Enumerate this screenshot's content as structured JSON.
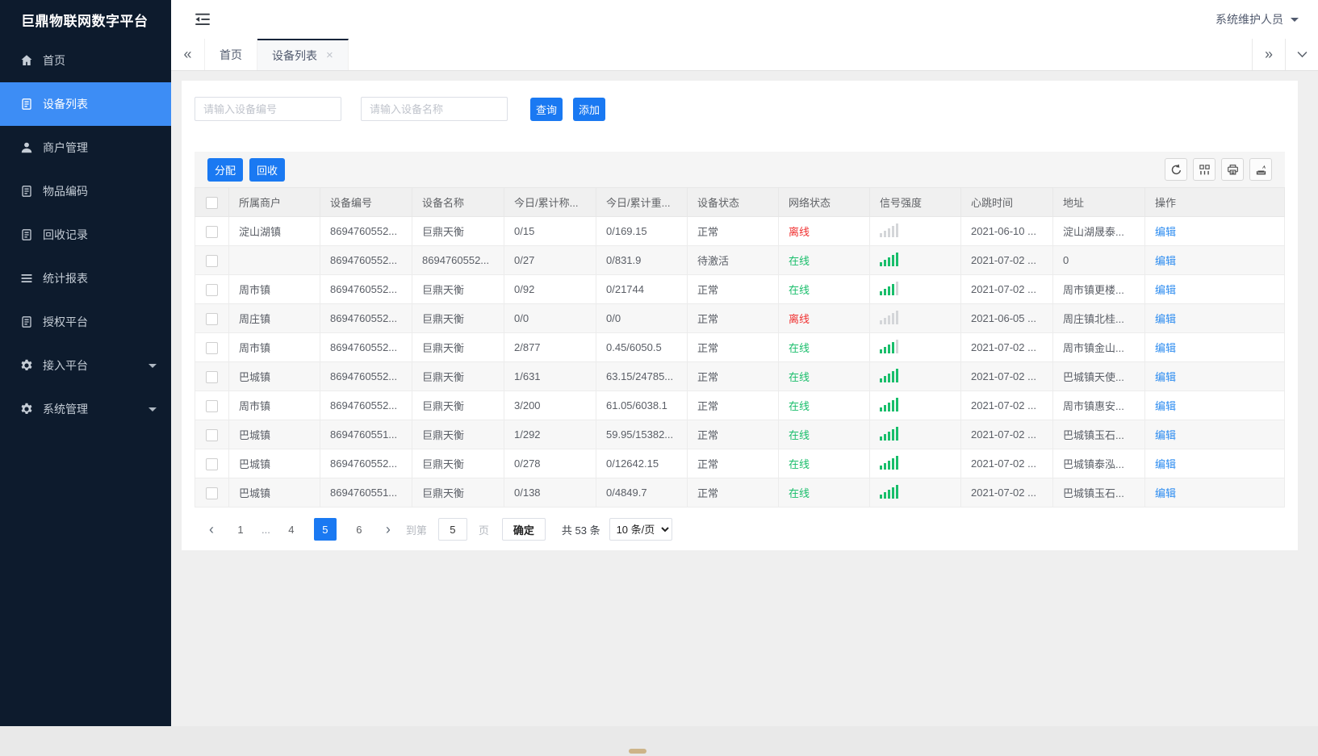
{
  "app": {
    "title": "巨鼎物联网数字平台",
    "user_name": "系统维护人员"
  },
  "sidebar": {
    "items": [
      {
        "key": "home",
        "label": "首页",
        "icon": "home-icon",
        "active": false,
        "expandable": false
      },
      {
        "key": "device-list",
        "label": "设备列表",
        "icon": "doc-icon",
        "active": true,
        "expandable": false
      },
      {
        "key": "merchant-management",
        "label": "商户管理",
        "icon": "user-icon",
        "active": false,
        "expandable": false
      },
      {
        "key": "item-code",
        "label": "物品编码",
        "icon": "doc-icon",
        "active": false,
        "expandable": false
      },
      {
        "key": "recycle-records",
        "label": "回收记录",
        "icon": "doc-icon",
        "active": false,
        "expandable": false
      },
      {
        "key": "statistics-report",
        "label": "统计报表",
        "icon": "lines-icon",
        "active": false,
        "expandable": false
      },
      {
        "key": "authorize-platform",
        "label": "授权平台",
        "icon": "doc-icon",
        "active": false,
        "expandable": false
      },
      {
        "key": "access-platform",
        "label": "接入平台",
        "icon": "gear-icon",
        "active": false,
        "expandable": true
      },
      {
        "key": "system-management",
        "label": "系统管理",
        "icon": "gear-icon",
        "active": false,
        "expandable": true
      }
    ]
  },
  "tabbar": {
    "tabs": [
      {
        "key": "home",
        "label": "首页",
        "active": false,
        "closable": false
      },
      {
        "key": "device-list",
        "label": "设备列表",
        "active": true,
        "closable": true
      }
    ],
    "close_glyph": "×",
    "scroll_left_glyph": "«",
    "scroll_right_glyph": "»"
  },
  "search": {
    "device_no_placeholder": "请输入设备编号",
    "device_name_placeholder": "请输入设备名称",
    "query_label": "查询",
    "add_label": "添加"
  },
  "toolbar": {
    "assign_label": "分配",
    "recycle_label": "回收",
    "icons": [
      "refresh-icon",
      "columns-icon",
      "print-icon",
      "export-icon"
    ]
  },
  "table": {
    "columns": [
      "所属商户",
      "设备编号",
      "设备名称",
      "今日/累计称...",
      "今日/累计重...",
      "设备状态",
      "网络状态",
      "信号强度",
      "心跳时间",
      "地址",
      "操作"
    ],
    "edit_label": "编辑",
    "rows": [
      {
        "merchant": "淀山湖镇",
        "device_no": "8694760552...",
        "device_name": "巨鼎天衡",
        "today_total_count": "0/15",
        "today_total_weight": "0/169.15",
        "device_status": "正常",
        "network_status": "离线",
        "online": false,
        "signal_level": 0,
        "heartbeat": "2021-06-10 ...",
        "address": "淀山湖晟泰..."
      },
      {
        "merchant": "",
        "device_no": "8694760552...",
        "device_name": "8694760552...",
        "today_total_count": "0/27",
        "today_total_weight": "0/831.9",
        "device_status": "待激活",
        "network_status": "在线",
        "online": true,
        "signal_level": 5,
        "heartbeat": "2021-07-02 ...",
        "address": "0"
      },
      {
        "merchant": "周市镇",
        "device_no": "8694760552...",
        "device_name": "巨鼎天衡",
        "today_total_count": "0/92",
        "today_total_weight": "0/21744",
        "device_status": "正常",
        "network_status": "在线",
        "online": true,
        "signal_level": 4,
        "heartbeat": "2021-07-02 ...",
        "address": "周市镇更楼..."
      },
      {
        "merchant": "周庄镇",
        "device_no": "8694760552...",
        "device_name": "巨鼎天衡",
        "today_total_count": "0/0",
        "today_total_weight": "0/0",
        "device_status": "正常",
        "network_status": "离线",
        "online": false,
        "signal_level": 0,
        "heartbeat": "2021-06-05 ...",
        "address": "周庄镇北桂..."
      },
      {
        "merchant": "周市镇",
        "device_no": "8694760552...",
        "device_name": "巨鼎天衡",
        "today_total_count": "2/877",
        "today_total_weight": "0.45/6050.5",
        "device_status": "正常",
        "network_status": "在线",
        "online": true,
        "signal_level": 4,
        "heartbeat": "2021-07-02 ...",
        "address": "周市镇金山..."
      },
      {
        "merchant": "巴城镇",
        "device_no": "8694760552...",
        "device_name": "巨鼎天衡",
        "today_total_count": "1/631",
        "today_total_weight": "63.15/24785...",
        "device_status": "正常",
        "network_status": "在线",
        "online": true,
        "signal_level": 5,
        "heartbeat": "2021-07-02 ...",
        "address": "巴城镇天使..."
      },
      {
        "merchant": "周市镇",
        "device_no": "8694760552...",
        "device_name": "巨鼎天衡",
        "today_total_count": "3/200",
        "today_total_weight": "61.05/6038.1",
        "device_status": "正常",
        "network_status": "在线",
        "online": true,
        "signal_level": 5,
        "heartbeat": "2021-07-02 ...",
        "address": "周市镇惠安..."
      },
      {
        "merchant": "巴城镇",
        "device_no": "8694760551...",
        "device_name": "巨鼎天衡",
        "today_total_count": "1/292",
        "today_total_weight": "59.95/15382...",
        "device_status": "正常",
        "network_status": "在线",
        "online": true,
        "signal_level": 5,
        "heartbeat": "2021-07-02 ...",
        "address": "巴城镇玉石..."
      },
      {
        "merchant": "巴城镇",
        "device_no": "8694760552...",
        "device_name": "巨鼎天衡",
        "today_total_count": "0/278",
        "today_total_weight": "0/12642.15",
        "device_status": "正常",
        "network_status": "在线",
        "online": true,
        "signal_level": 5,
        "heartbeat": "2021-07-02 ...",
        "address": "巴城镇泰泓..."
      },
      {
        "merchant": "巴城镇",
        "device_no": "8694760551...",
        "device_name": "巨鼎天衡",
        "today_total_count": "0/138",
        "today_total_weight": "0/4849.7",
        "device_status": "正常",
        "network_status": "在线",
        "online": true,
        "signal_level": 5,
        "heartbeat": "2021-07-02 ...",
        "address": "巴城镇玉石..."
      }
    ]
  },
  "pagination": {
    "prev_glyph": "‹",
    "next_glyph": "›",
    "pages": [
      "1",
      "...",
      "4",
      "5",
      "6"
    ],
    "active_page": "5",
    "goto_prefix": "到第",
    "goto_value": "5",
    "goto_suffix": "页",
    "confirm_label": "确定",
    "total_label": "共 53 条",
    "page_size_label": "10 条/页"
  },
  "colors": {
    "sidebar_bg": "#0d1b2d",
    "sidebar_active_blue": "#3d8df5",
    "primary_blue": "#1a79f2",
    "link_blue": "#2d8cf0",
    "online_green": "#19be6b",
    "offline_red": "#f03030"
  }
}
